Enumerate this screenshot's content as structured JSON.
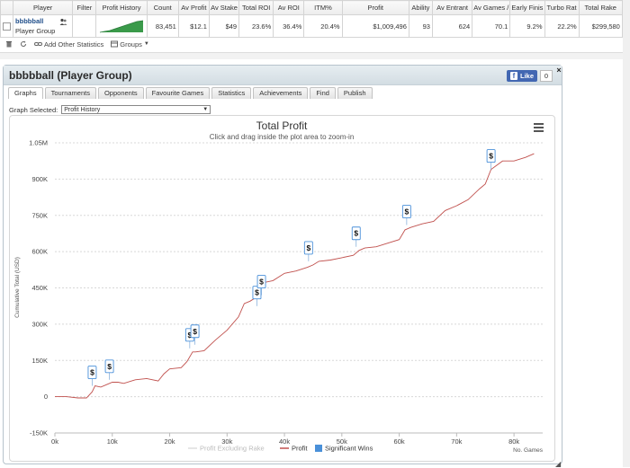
{
  "stats_table": {
    "headers": [
      "Player",
      "Filter",
      "Profit History",
      "Count",
      "Av Profit",
      "Av Stake",
      "Total ROI",
      "Av ROI",
      "ITM%",
      "Profit",
      "Ability",
      "Av Entrant",
      "Av Games /",
      "Early Finis",
      "Turbo Rat",
      "Total Rake"
    ],
    "row": {
      "player_name": "bbbbball",
      "player_group": "Player Group",
      "filter": "",
      "count": "83,451",
      "av_profit": "$12.1",
      "av_stake": "$49",
      "total_roi": "23.6%",
      "av_roi": "36.4%",
      "itm": "20.4%",
      "profit": "$1,009,496",
      "ability": "93",
      "av_entrant": "624",
      "av_games": "70.1",
      "early_finish": "9.2%",
      "turbo_ratio": "22.2%",
      "total_rake": "$299,580",
      "remove_link": "x"
    }
  },
  "toolbar": {
    "add_stats": "Add Other Statistics",
    "groups": "Groups"
  },
  "panel": {
    "title": "bbbbball (Player Group)",
    "like_label": "Like",
    "like_count": "0",
    "close_label": "×",
    "tabs": [
      "Graphs",
      "Tournaments",
      "Opponents",
      "Favourite Games",
      "Statistics",
      "Achievements",
      "Find",
      "Publish"
    ],
    "active_tab": "Graphs",
    "graph_selected_label": "Graph Selected:",
    "graph_selected_value": "Profit History"
  },
  "chart_data": {
    "type": "line",
    "title": "Total Profit",
    "subtitle": "Click and drag inside the plot area to zoom-in",
    "ylabel": "Cumulative Total (USD)",
    "xlabel": "No. Games",
    "ylim": [
      -150000,
      1050000
    ],
    "xlim": [
      0,
      85000
    ],
    "y_ticks": [
      "-150K",
      "0",
      "150K",
      "300K",
      "450K",
      "600K",
      "750K",
      "900K",
      "1.05M"
    ],
    "y_tick_values": [
      -150000,
      0,
      150000,
      300000,
      450000,
      600000,
      750000,
      900000,
      1050000
    ],
    "x_ticks": [
      "0k",
      "10k",
      "20k",
      "30k",
      "40k",
      "50k",
      "60k",
      "70k",
      "80k"
    ],
    "x_tick_values": [
      0,
      10000,
      20000,
      30000,
      40000,
      50000,
      60000,
      70000,
      80000
    ],
    "grid": true,
    "legend_placement": "bottom",
    "legend": [
      "Profit Excluding Rake",
      "Profit",
      "Significant Wins"
    ],
    "series": [
      {
        "name": "Profit",
        "color": "#c0504d",
        "x": [
          0,
          2000,
          4000,
          5500,
          6500,
          7000,
          8000,
          9000,
          10000,
          11000,
          12000,
          14000,
          16000,
          18000,
          19000,
          20000,
          22000,
          23000,
          24000,
          24500,
          26000,
          28000,
          30000,
          32000,
          33000,
          34000,
          35000,
          35500,
          36000,
          38000,
          40000,
          42000,
          44000,
          45000,
          46000,
          48000,
          50000,
          52000,
          53000,
          54000,
          56000,
          58000,
          60000,
          61000,
          62000,
          64000,
          66000,
          68000,
          70000,
          72000,
          74000,
          75000,
          76000,
          78000,
          80000,
          82000,
          83500
        ],
        "y": [
          0,
          0,
          -5000,
          -5000,
          20000,
          45000,
          40000,
          50000,
          60000,
          60000,
          55000,
          70000,
          75000,
          65000,
          95000,
          115000,
          120000,
          145000,
          185000,
          185000,
          190000,
          235000,
          275000,
          330000,
          385000,
          395000,
          410000,
          445000,
          470000,
          480000,
          510000,
          520000,
          535000,
          545000,
          560000,
          565000,
          575000,
          585000,
          605000,
          615000,
          620000,
          635000,
          650000,
          690000,
          700000,
          715000,
          725000,
          770000,
          790000,
          815000,
          860000,
          880000,
          940000,
          975000,
          975000,
          990000,
          1005000
        ]
      },
      {
        "name": "Profit Excluding Rake",
        "color": "#dddddd",
        "x": [],
        "y": []
      }
    ],
    "significant_wins": {
      "name": "Significant Wins",
      "label": "$",
      "color": "#4a90d9",
      "x": [
        6500,
        9500,
        23500,
        24400,
        35200,
        36000,
        44200,
        52500,
        61300,
        76000
      ],
      "y": [
        45000,
        70000,
        200000,
        215000,
        375000,
        420000,
        560000,
        620000,
        710000,
        940000
      ]
    }
  }
}
